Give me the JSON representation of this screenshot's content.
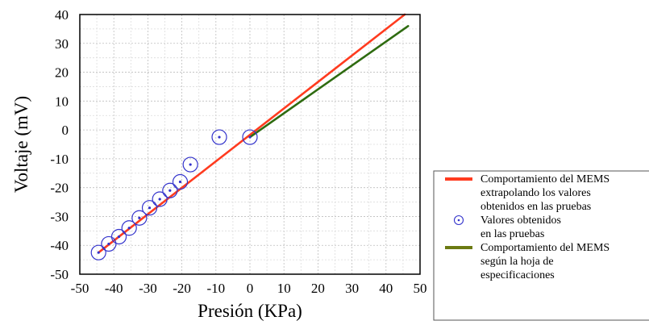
{
  "chart_data": {
    "type": "line",
    "xlabel": "Presión (KPa)",
    "ylabel": "Voltaje (mV)",
    "xlim": [
      -50,
      50
    ],
    "ylim": [
      -50,
      40
    ],
    "xticks": [
      -50,
      -40,
      -30,
      -20,
      -10,
      0,
      10,
      20,
      30,
      40,
      50
    ],
    "yticks": [
      -50,
      -40,
      -30,
      -20,
      -10,
      0,
      10,
      20,
      30,
      40
    ],
    "grid": true,
    "legend_position": "outside-right-bottom",
    "series": [
      {
        "name": "Comportamiento del MEMS extrapolando los valores obtenidos en las pruebas",
        "kind": "line",
        "color": "#ff3b1f",
        "x": [
          -44.5,
          45.5
        ],
        "y": [
          -42.5,
          40.0
        ]
      },
      {
        "name": "Valores obtenidos en las pruebas",
        "kind": "scatter",
        "marker": "circle-dot",
        "color": "#3333cc",
        "x": [
          -44.5,
          -41.5,
          -38.5,
          -35.5,
          -32.5,
          -29.5,
          -26.5,
          -23.5,
          -20.5,
          -17.5,
          -9.0,
          0.0
        ],
        "y": [
          -42.5,
          -39.5,
          -37.0,
          -34.0,
          -30.5,
          -27.0,
          -24.0,
          -21.0,
          -18.0,
          -12.0,
          -2.5,
          -2.5
        ]
      },
      {
        "name": "Comportamiento del MEMS según la hoja de especificaciones",
        "kind": "line",
        "color": "#2e6b10",
        "x": [
          0.0,
          46.5
        ],
        "y": [
          -2.5,
          36.0
        ]
      }
    ]
  },
  "legend": {
    "items": [
      {
        "lines": [
          "Comportamiento del MEMS",
          "extrapolando los valores",
          "obtenidos en las pruebas"
        ],
        "color": "#ff3b1f",
        "marker": "line"
      },
      {
        "lines": [
          "Valores obtenidos",
          "en las pruebas"
        ],
        "color": "#3333cc",
        "marker": "circle-dot"
      },
      {
        "lines": [
          "Comportamiento del MEMS",
          "según la hoja de",
          "especificaciones"
        ],
        "color": "#6b7a12",
        "marker": "line"
      }
    ]
  }
}
